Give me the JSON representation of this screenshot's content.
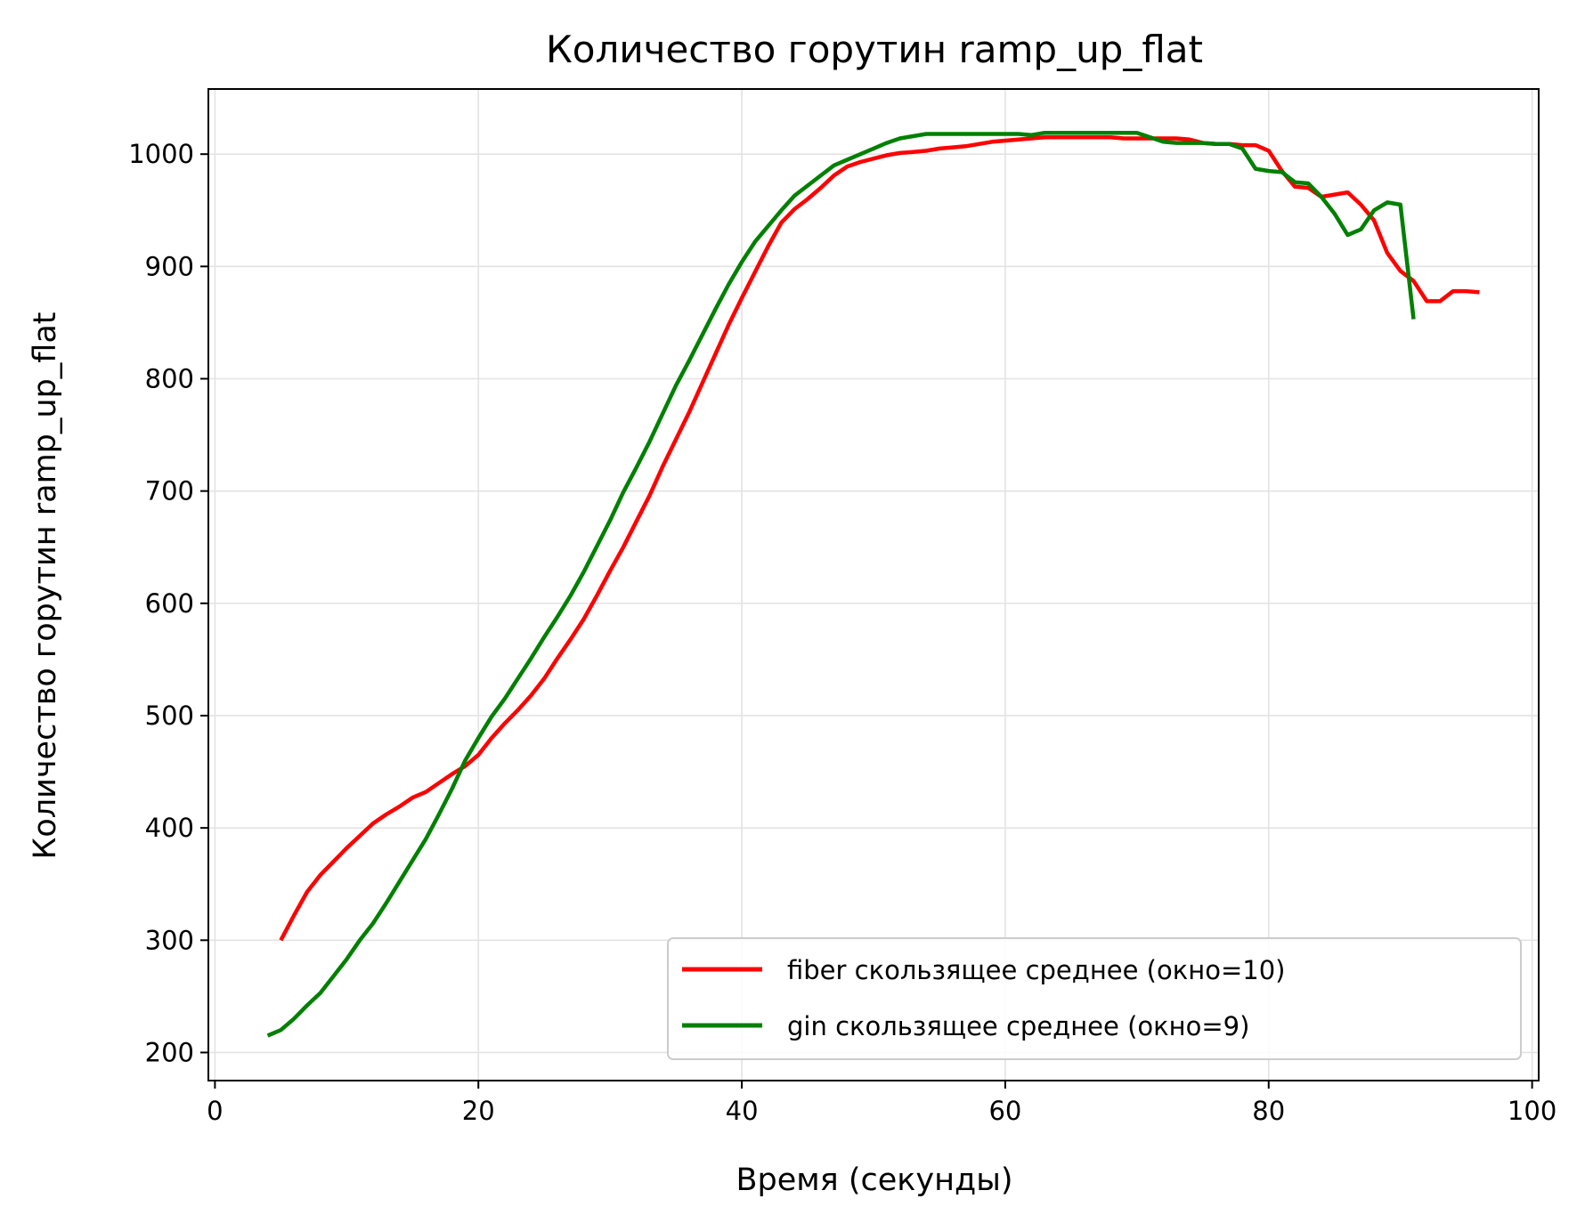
{
  "chart_data": {
    "type": "line",
    "title": "Количество горутин ramp_up_flat",
    "xlabel": "Время (секунды)",
    "ylabel": "Количество горутин ramp_up_flat",
    "xlim": [
      -0.5,
      100.5
    ],
    "ylim": [
      175,
      1058
    ],
    "xticks": [
      0,
      20,
      40,
      60,
      80,
      100
    ],
    "yticks": [
      200,
      300,
      400,
      500,
      600,
      700,
      800,
      900,
      1000
    ],
    "grid": true,
    "legend_position": "lower right",
    "series": [
      {
        "name": "fiber скользящее среднее (окно=10)",
        "color": "#ff0000",
        "x": [
          5,
          6,
          7,
          8,
          9,
          10,
          11,
          12,
          13,
          14,
          15,
          16,
          17,
          18,
          19,
          20,
          21,
          22,
          23,
          24,
          25,
          26,
          27,
          28,
          29,
          30,
          31,
          32,
          33,
          34,
          35,
          36,
          37,
          38,
          39,
          40,
          41,
          42,
          43,
          44,
          45,
          46,
          47,
          48,
          49,
          50,
          51,
          52,
          53,
          54,
          55,
          56,
          57,
          58,
          59,
          60,
          61,
          62,
          63,
          64,
          65,
          66,
          67,
          68,
          69,
          70,
          71,
          72,
          73,
          74,
          75,
          76,
          77,
          78,
          79,
          80,
          81,
          82,
          83,
          84,
          85,
          86,
          87,
          88,
          89,
          90,
          91,
          92,
          93,
          94,
          95,
          96
        ],
        "values": [
          300,
          322,
          343,
          358,
          370,
          382,
          393,
          404,
          412,
          419,
          427,
          432,
          440,
          448,
          455,
          465,
          480,
          493,
          505,
          518,
          533,
          551,
          568,
          586,
          607,
          629,
          650,
          673,
          696,
          722,
          746,
          770,
          796,
          822,
          848,
          872,
          895,
          918,
          939,
          951,
          960,
          970,
          981,
          989,
          993,
          996,
          999,
          1001,
          1002,
          1003,
          1005,
          1006,
          1007,
          1009,
          1011,
          1012,
          1013,
          1014,
          1015,
          1015,
          1015,
          1015,
          1015,
          1015,
          1014,
          1014,
          1014,
          1014,
          1014,
          1013,
          1010,
          1009,
          1009,
          1008,
          1008,
          1003,
          985,
          971,
          970,
          962,
          964,
          966,
          955,
          941,
          912,
          896,
          887,
          869,
          869,
          878,
          878,
          877
        ]
      },
      {
        "name": "gin скользящее среднее (окно=9)",
        "color": "#008000",
        "x": [
          4,
          5,
          6,
          7,
          8,
          9,
          10,
          11,
          12,
          13,
          14,
          15,
          16,
          17,
          18,
          19,
          20,
          21,
          22,
          23,
          24,
          25,
          26,
          27,
          28,
          29,
          30,
          31,
          32,
          33,
          34,
          35,
          36,
          37,
          38,
          39,
          40,
          41,
          42,
          43,
          44,
          45,
          46,
          47,
          48,
          49,
          50,
          51,
          52,
          53,
          54,
          55,
          56,
          57,
          58,
          59,
          60,
          61,
          62,
          63,
          64,
          65,
          66,
          67,
          68,
          69,
          70,
          71,
          72,
          73,
          74,
          75,
          76,
          77,
          78,
          79,
          80,
          81,
          82,
          83,
          84,
          85,
          86,
          87,
          88,
          89,
          90,
          91
        ],
        "values": [
          215,
          220,
          230,
          242,
          253,
          268,
          283,
          300,
          315,
          333,
          352,
          371,
          390,
          412,
          435,
          460,
          480,
          499,
          515,
          533,
          551,
          570,
          588,
          607,
          628,
          651,
          674,
          699,
          721,
          744,
          769,
          794,
          816,
          839,
          862,
          884,
          904,
          922,
          936,
          950,
          963,
          972,
          981,
          990,
          995,
          1000,
          1005,
          1010,
          1014,
          1016,
          1018,
          1018,
          1018,
          1018,
          1018,
          1018,
          1018,
          1018,
          1017,
          1019,
          1019,
          1019,
          1019,
          1019,
          1019,
          1019,
          1019,
          1015,
          1011,
          1010,
          1010,
          1010,
          1009,
          1009,
          1005,
          987,
          985,
          984,
          975,
          974,
          962,
          947,
          928,
          933,
          950,
          957,
          955,
          853
        ]
      }
    ]
  }
}
